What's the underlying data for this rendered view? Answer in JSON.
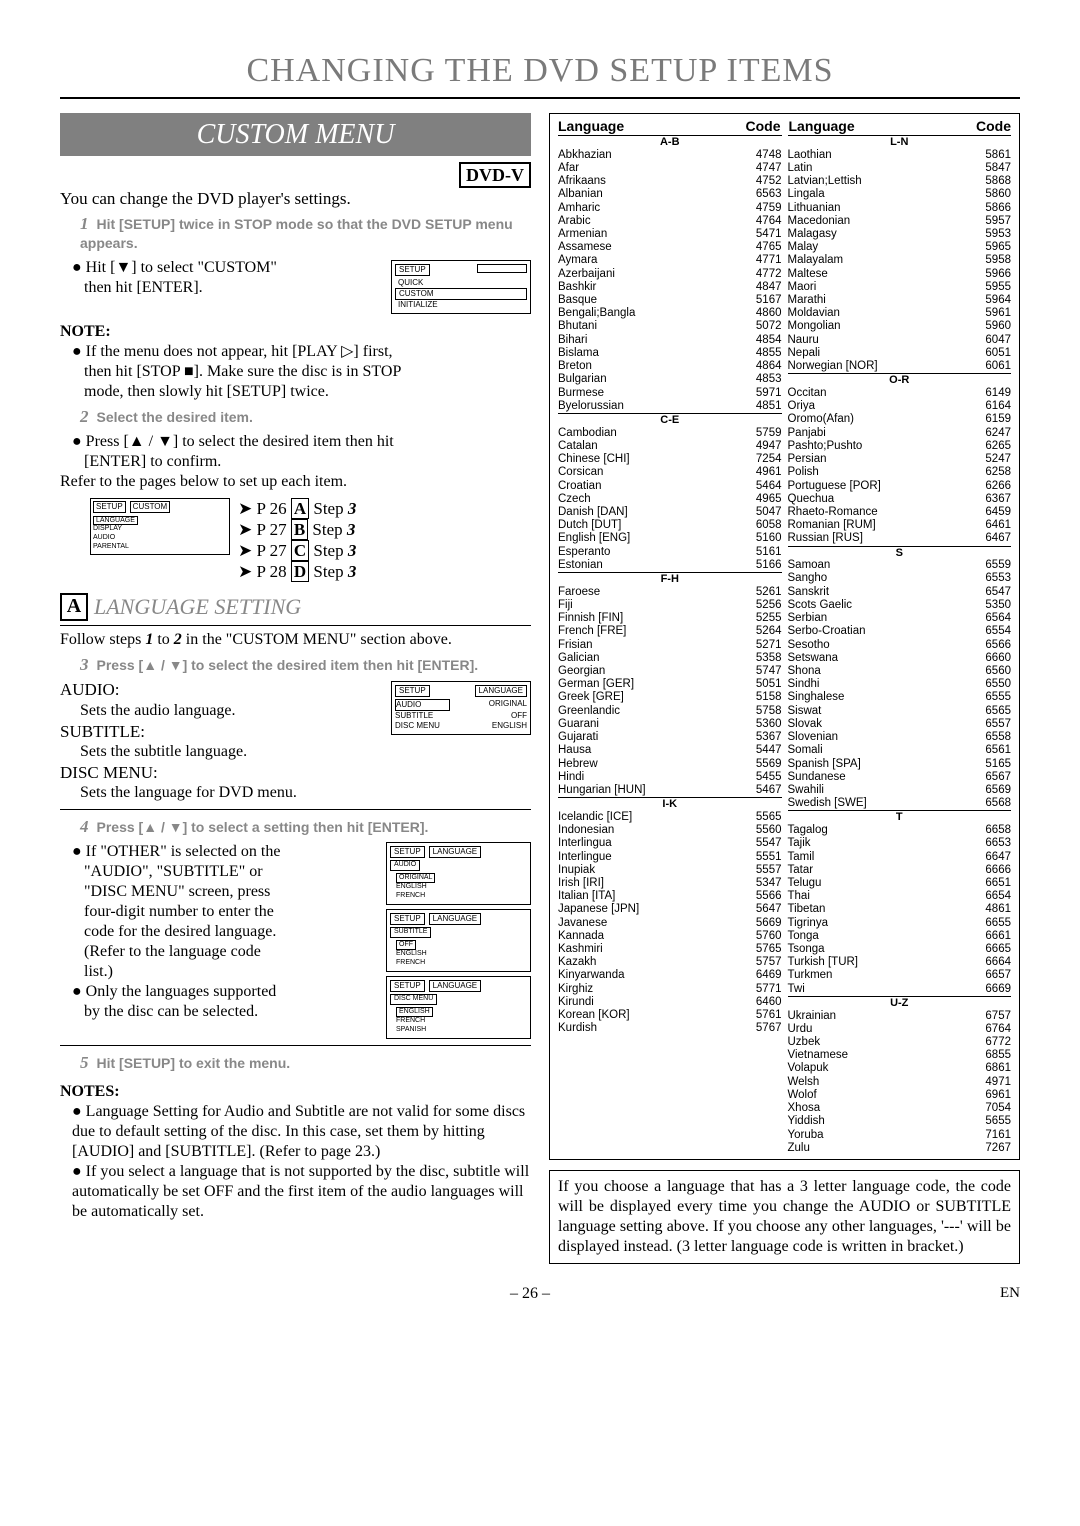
{
  "page": {
    "number": "– 26 –",
    "lang_mark": "EN"
  },
  "title": "CHANGING THE DVD SETUP ITEMS",
  "custom_menu": {
    "heading": "CUSTOM MENU",
    "badge": "DVD-V",
    "intro": "You can change the DVD player's settings.",
    "step1": {
      "num": "1",
      "text": "Hit [SETUP] twice in STOP mode so that the DVD SETUP menu appears."
    },
    "bullet1a": "Hit [▼] to select \"CUSTOM\"",
    "bullet1b": "then hit [ENTER].",
    "menu1": {
      "hdr": "SETUP",
      "items": [
        "QUICK",
        "CUSTOM",
        "INITIALIZE"
      ],
      "sel": 1
    },
    "note_hdr": "NOTE:",
    "note1a": "If the menu does not appear, hit [PLAY ▷] first,",
    "note1b": "then hit [STOP ■]. Make sure the disc is in STOP",
    "note1c": "mode, then slowly hit [SETUP] twice.",
    "step2": {
      "num": "2",
      "text": "Select the desired item."
    },
    "bullet2a": "Press [▲ / ▼] to select the desired item then hit",
    "bullet2b": "[ENTER] to confirm.",
    "refer": "Refer to the pages below to set up each item.",
    "menu2": {
      "hdr": "SETUP",
      "cat": "CUSTOM",
      "items": [
        "LANGUAGE",
        "DISPLAY",
        "AUDIO",
        "PARENTAL"
      ]
    },
    "refs": [
      {
        "page": "P 26",
        "letter": "A",
        "step": "Step 3"
      },
      {
        "page": "P 27",
        "letter": "B",
        "step": "Step 3"
      },
      {
        "page": "P 27",
        "letter": "C",
        "step": "Step 3"
      },
      {
        "page": "P 28",
        "letter": "D",
        "step": "Step 3"
      }
    ]
  },
  "lang_setting": {
    "letter": "A",
    "title": "LANGUAGE SETTING",
    "follow": "Follow steps 1 to 2 in the \"CUSTOM MENU\" section above.",
    "step3": {
      "num": "3",
      "text": "Press [▲ / ▼] to select the desired item then hit [ENTER]."
    },
    "audio_lbl": "AUDIO:",
    "audio_txt": "Sets the audio language.",
    "sub_lbl": "SUBTITLE:",
    "sub_txt": "Sets the subtitle language.",
    "disc_lbl": "DISC MENU:",
    "disc_txt": "Sets the language for DVD menu.",
    "menu3": {
      "hdr": "SETUP",
      "cat": "LANGUAGE",
      "rows": [
        [
          "AUDIO",
          "ORIGINAL"
        ],
        [
          "SUBTITLE",
          "OFF"
        ],
        [
          "DISC MENU",
          "ENGLISH"
        ]
      ]
    },
    "step4": {
      "num": "4",
      "text": "Press [▲ / ▼] to select a setting then hit [ENTER]."
    },
    "b4a": "If \"OTHER\" is selected on the",
    "b4b": "\"AUDIO\", \"SUBTITLE\" or",
    "b4c": "\"DISC MENU\" screen, press",
    "b4d": "four-digit number to enter the",
    "b4e": "code for the desired language.",
    "b4f": "(Refer to the language code",
    "b4g": "list.)",
    "b5a": "Only the languages supported",
    "b5b": "by the disc can be selected.",
    "menu4a": {
      "hdr": "SETUP",
      "cat": "LANGUAGE",
      "title": "AUDIO",
      "items": [
        "ORIGINAL",
        "ENGLISH",
        "FRENCH"
      ]
    },
    "menu4b": {
      "hdr": "SETUP",
      "cat": "LANGUAGE",
      "title": "SUBTITLE",
      "items": [
        "OFF",
        "ENGLISH",
        "FRENCH"
      ]
    },
    "menu4c": {
      "hdr": "SETUP",
      "cat": "LANGUAGE",
      "title": "DISC MENU",
      "items": [
        "ENGLISH",
        "FRENCH",
        "SPANISH"
      ]
    },
    "step5": {
      "num": "5",
      "text": "Hit [SETUP] to exit the menu."
    },
    "notes_hdr": "NOTES:",
    "n1": "Language Setting for Audio and Subtitle are not valid for some discs due to default setting of the disc. In this case, set them by hitting [AUDIO] and [SUBTITLE]. (Refer to page 23.)",
    "n2": "If you select a language that is not supported by the disc, subtitle will automatically be set OFF and the first item of the audio languages will be automatically set."
  },
  "lang_table": {
    "col_hdrs": [
      "Language",
      "Code",
      "Language",
      "Code"
    ],
    "groups1": [
      {
        "hdr": "A-B",
        "rows": [
          [
            "Abkhazian",
            "4748"
          ],
          [
            "Afar",
            "4747"
          ],
          [
            "Afrikaans",
            "4752"
          ],
          [
            "Albanian",
            "6563"
          ],
          [
            "Amharic",
            "4759"
          ],
          [
            "Arabic",
            "4764"
          ],
          [
            "Armenian",
            "5471"
          ],
          [
            "Assamese",
            "4765"
          ],
          [
            "Aymara",
            "4771"
          ],
          [
            "Azerbaijani",
            "4772"
          ],
          [
            "Bashkir",
            "4847"
          ],
          [
            "Basque",
            "5167"
          ],
          [
            "Bengali;Bangla",
            "4860"
          ],
          [
            "Bhutani",
            "5072"
          ],
          [
            "Bihari",
            "4854"
          ],
          [
            "Bislama",
            "4855"
          ],
          [
            "Breton",
            "4864"
          ],
          [
            "Bulgarian",
            "4853"
          ],
          [
            "Burmese",
            "5971"
          ],
          [
            "Byelorussian",
            "4851"
          ]
        ]
      },
      {
        "hdr": "C-E",
        "rows": [
          [
            "Cambodian",
            "5759"
          ],
          [
            "Catalan",
            "4947"
          ],
          [
            "Chinese [CHI]",
            "7254"
          ],
          [
            "Corsican",
            "4961"
          ],
          [
            "Croatian",
            "5464"
          ],
          [
            "Czech",
            "4965"
          ],
          [
            "Danish [DAN]",
            "5047"
          ],
          [
            "Dutch [DUT]",
            "6058"
          ],
          [
            "English [ENG]",
            "5160"
          ],
          [
            "Esperanto",
            "5161"
          ],
          [
            "Estonian",
            "5166"
          ]
        ]
      },
      {
        "hdr": "F-H",
        "rows": [
          [
            "Faroese",
            "5261"
          ],
          [
            "Fiji",
            "5256"
          ],
          [
            "Finnish [FIN]",
            "5255"
          ],
          [
            "French [FRE]",
            "5264"
          ],
          [
            "Frisian",
            "5271"
          ],
          [
            "Galician",
            "5358"
          ],
          [
            "Georgian",
            "5747"
          ],
          [
            "German [GER]",
            "5051"
          ],
          [
            "Greek [GRE]",
            "5158"
          ],
          [
            "Greenlandic",
            "5758"
          ],
          [
            "Guarani",
            "5360"
          ],
          [
            "Gujarati",
            "5367"
          ],
          [
            "Hausa",
            "5447"
          ],
          [
            "Hebrew",
            "5569"
          ],
          [
            "Hindi",
            "5455"
          ],
          [
            "Hungarian [HUN]",
            "5467"
          ]
        ]
      },
      {
        "hdr": "I-K",
        "rows": [
          [
            "Icelandic [ICE]",
            "5565"
          ],
          [
            "Indonesian",
            "5560"
          ],
          [
            "Interlingua",
            "5547"
          ],
          [
            "Interlingue",
            "5551"
          ],
          [
            "Inupiak",
            "5557"
          ],
          [
            "Irish [IRI]",
            "5347"
          ],
          [
            "Italian [ITA]",
            "5566"
          ],
          [
            "Japanese [JPN]",
            "5647"
          ],
          [
            "Javanese",
            "5669"
          ],
          [
            "Kannada",
            "5760"
          ],
          [
            "Kashmiri",
            "5765"
          ],
          [
            "Kazakh",
            "5757"
          ],
          [
            "Kinyarwanda",
            "6469"
          ],
          [
            "Kirghiz",
            "5771"
          ],
          [
            "Kirundi",
            "6460"
          ],
          [
            "Korean [KOR]",
            "5761"
          ],
          [
            "Kurdish",
            "5767"
          ]
        ]
      }
    ],
    "groups2": [
      {
        "hdr": "L-N",
        "rows": [
          [
            "Laothian",
            "5861"
          ],
          [
            "Latin",
            "5847"
          ],
          [
            "Latvian;Lettish",
            "5868"
          ],
          [
            "Lingala",
            "5860"
          ],
          [
            "Lithuanian",
            "5866"
          ],
          [
            "Macedonian",
            "5957"
          ],
          [
            "Malagasy",
            "5953"
          ],
          [
            "Malay",
            "5965"
          ],
          [
            "Malayalam",
            "5958"
          ],
          [
            "Maltese",
            "5966"
          ],
          [
            "Maori",
            "5955"
          ],
          [
            "Marathi",
            "5964"
          ],
          [
            "Moldavian",
            "5961"
          ],
          [
            "Mongolian",
            "5960"
          ],
          [
            "Nauru",
            "6047"
          ],
          [
            "Nepali",
            "6051"
          ],
          [
            "Norwegian [NOR]",
            "6061"
          ]
        ]
      },
      {
        "hdr": "O-R",
        "rows": [
          [
            "Occitan",
            "6149"
          ],
          [
            "Oriya",
            "6164"
          ],
          [
            "Oromo(Afan)",
            "6159"
          ],
          [
            "Panjabi",
            "6247"
          ],
          [
            "Pashto;Pushto",
            "6265"
          ],
          [
            "Persian",
            "5247"
          ],
          [
            "Polish",
            "6258"
          ],
          [
            "Portuguese [POR]",
            "6266"
          ],
          [
            "Quechua",
            "6367"
          ],
          [
            "Rhaeto-Romance",
            "6459"
          ],
          [
            "Romanian [RUM]",
            "6461"
          ],
          [
            "Russian [RUS]",
            "6467"
          ]
        ]
      },
      {
        "hdr": "S",
        "rows": [
          [
            "Samoan",
            "6559"
          ],
          [
            "Sangho",
            "6553"
          ],
          [
            "Sanskrit",
            "6547"
          ],
          [
            "Scots Gaelic",
            "5350"
          ],
          [
            "Serbian",
            "6564"
          ],
          [
            "Serbo-Croatian",
            "6554"
          ],
          [
            "Sesotho",
            "6566"
          ],
          [
            "Setswana",
            "6660"
          ],
          [
            "Shona",
            "6560"
          ],
          [
            "Sindhi",
            "6550"
          ],
          [
            "Singhalese",
            "6555"
          ],
          [
            "Siswat",
            "6565"
          ],
          [
            "Slovak",
            "6557"
          ],
          [
            "Slovenian",
            "6558"
          ],
          [
            "Somali",
            "6561"
          ],
          [
            "Spanish [SPA]",
            "5165"
          ],
          [
            "Sundanese",
            "6567"
          ],
          [
            "Swahili",
            "6569"
          ],
          [
            "Swedish [SWE]",
            "6568"
          ]
        ]
      },
      {
        "hdr": "T",
        "rows": [
          [
            "Tagalog",
            "6658"
          ],
          [
            "Tajik",
            "6653"
          ],
          [
            "Tamil",
            "6647"
          ],
          [
            "Tatar",
            "6666"
          ],
          [
            "Telugu",
            "6651"
          ],
          [
            "Thai",
            "6654"
          ],
          [
            "Tibetan",
            "4861"
          ],
          [
            "Tigrinya",
            "6655"
          ],
          [
            "Tonga",
            "6661"
          ],
          [
            "Tsonga",
            "6665"
          ],
          [
            "Turkish [TUR]",
            "6664"
          ],
          [
            "Turkmen",
            "6657"
          ],
          [
            "Twi",
            "6669"
          ]
        ]
      },
      {
        "hdr": "U-Z",
        "rows": [
          [
            "Ukrainian",
            "6757"
          ],
          [
            "Urdu",
            "6764"
          ],
          [
            "Uzbek",
            "6772"
          ],
          [
            "Vietnamese",
            "6855"
          ],
          [
            "Volapuk",
            "6861"
          ],
          [
            "Welsh",
            "4971"
          ],
          [
            "Wolof",
            "6961"
          ],
          [
            "Xhosa",
            "7054"
          ],
          [
            "Yiddish",
            "5655"
          ],
          [
            "Yoruba",
            "7161"
          ],
          [
            "Zulu",
            "7267"
          ]
        ]
      }
    ],
    "note": "If you choose a language that has a 3 letter language code, the code will be displayed every time you change the AUDIO or SUBTITLE language setting above. If you choose any other languages, '---' will be displayed instead. (3 letter language code is written in bracket.)"
  }
}
